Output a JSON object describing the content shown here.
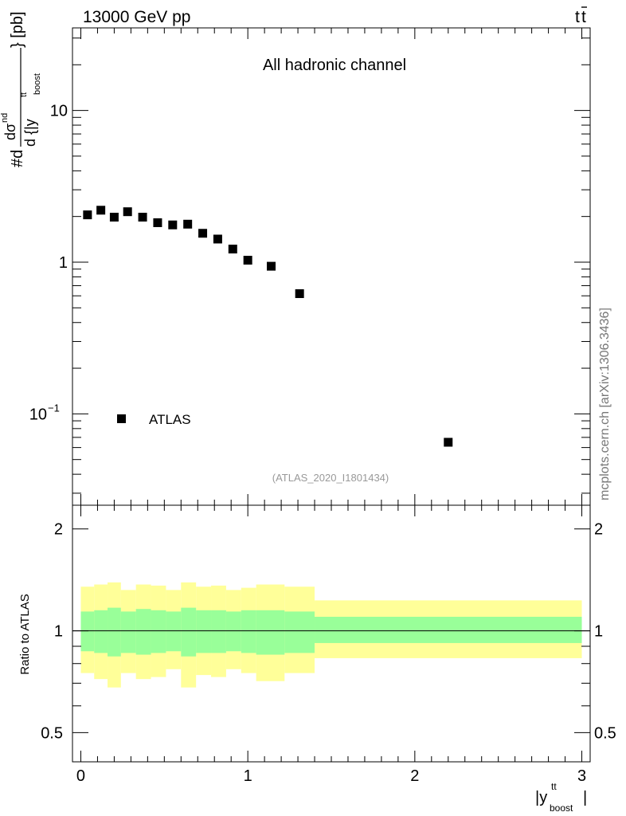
{
  "header": {
    "left": "13000 GeV pp",
    "right_main": "t",
    "right_bar": "t"
  },
  "side_label": "mcplots.cern.ch [arXiv:1306.3436]",
  "chart_data": [
    {
      "type": "scatter",
      "panel": "main",
      "title": "All hadronic channel",
      "analysis_id": "(ATLAS_2020_I1801434)",
      "ylabel": {
        "prefix": "#d",
        "num_main": "dσ",
        "num_sup": "nd",
        "den_main": "d {|y",
        "den_sup": "tt",
        "den_sub": "boost",
        "suffix": "} [pb]"
      },
      "yscale": "log",
      "ylim": [
        0.025,
        35
      ],
      "xlim": [
        -0.05,
        3.05
      ],
      "ytick_labels": [
        {
          "value": 10,
          "text": "10"
        },
        {
          "value": 1,
          "text": "1"
        },
        {
          "value": 0.1,
          "base": "10",
          "exp": "−1"
        }
      ],
      "series": [
        {
          "name": "ATLAS",
          "color": "#000000",
          "marker": "square",
          "points": [
            {
              "x": 0.04,
              "y": 2.05
            },
            {
              "x": 0.12,
              "y": 2.2
            },
            {
              "x": 0.2,
              "y": 1.98
            },
            {
              "x": 0.28,
              "y": 2.15
            },
            {
              "x": 0.37,
              "y": 1.98
            },
            {
              "x": 0.46,
              "y": 1.82
            },
            {
              "x": 0.55,
              "y": 1.76
            },
            {
              "x": 0.64,
              "y": 1.78
            },
            {
              "x": 0.73,
              "y": 1.55
            },
            {
              "x": 0.82,
              "y": 1.42
            },
            {
              "x": 0.91,
              "y": 1.22
            },
            {
              "x": 1.0,
              "y": 1.03
            },
            {
              "x": 1.14,
              "y": 0.94
            },
            {
              "x": 1.31,
              "y": 0.62
            },
            {
              "x": 2.2,
              "y": 0.065
            }
          ]
        }
      ],
      "legend": {
        "entries": [
          "ATLAS"
        ],
        "placement": "lower-left"
      }
    },
    {
      "type": "area",
      "panel": "ratio",
      "ylabel": "Ratio to ATLAS",
      "xlabel": {
        "main": "|y",
        "sup": "tt",
        "sub": "boost",
        "end": "|"
      },
      "xlim": [
        -0.05,
        3.05
      ],
      "ylim": [
        0.41,
        2.35
      ],
      "yscale": "log",
      "xtick_labels": [
        "0",
        "1",
        "2",
        "3"
      ],
      "ytick_labels": [
        "2",
        "1",
        "0.5"
      ],
      "reference_line": 1.0,
      "colors": {
        "inner": "#99ff99",
        "outer": "#ffff99"
      },
      "bins": [
        {
          "x0": 0.0,
          "x1": 0.08,
          "inner": [
            0.87,
            1.14
          ],
          "outer": [
            0.75,
            1.35
          ]
        },
        {
          "x0": 0.08,
          "x1": 0.16,
          "inner": [
            0.86,
            1.15
          ],
          "outer": [
            0.72,
            1.37
          ]
        },
        {
          "x0": 0.16,
          "x1": 0.24,
          "inner": [
            0.84,
            1.17
          ],
          "outer": [
            0.68,
            1.39
          ]
        },
        {
          "x0": 0.24,
          "x1": 0.33,
          "inner": [
            0.86,
            1.14
          ],
          "outer": [
            0.75,
            1.32
          ]
        },
        {
          "x0": 0.33,
          "x1": 0.42,
          "inner": [
            0.85,
            1.16
          ],
          "outer": [
            0.72,
            1.37
          ]
        },
        {
          "x0": 0.42,
          "x1": 0.51,
          "inner": [
            0.86,
            1.15
          ],
          "outer": [
            0.73,
            1.36
          ]
        },
        {
          "x0": 0.51,
          "x1": 0.6,
          "inner": [
            0.87,
            1.14
          ],
          "outer": [
            0.77,
            1.32
          ]
        },
        {
          "x0": 0.6,
          "x1": 0.69,
          "inner": [
            0.84,
            1.17
          ],
          "outer": [
            0.68,
            1.39
          ]
        },
        {
          "x0": 0.69,
          "x1": 0.78,
          "inner": [
            0.86,
            1.15
          ],
          "outer": [
            0.74,
            1.35
          ]
        },
        {
          "x0": 0.78,
          "x1": 0.87,
          "inner": [
            0.86,
            1.15
          ],
          "outer": [
            0.73,
            1.36
          ]
        },
        {
          "x0": 0.87,
          "x1": 0.96,
          "inner": [
            0.87,
            1.14
          ],
          "outer": [
            0.77,
            1.32
          ]
        },
        {
          "x0": 0.96,
          "x1": 1.05,
          "inner": [
            0.86,
            1.15
          ],
          "outer": [
            0.75,
            1.34
          ]
        },
        {
          "x0": 1.05,
          "x1": 1.22,
          "inner": [
            0.85,
            1.15
          ],
          "outer": [
            0.71,
            1.37
          ]
        },
        {
          "x0": 1.22,
          "x1": 1.4,
          "inner": [
            0.86,
            1.14
          ],
          "outer": [
            0.75,
            1.35
          ]
        },
        {
          "x0": 1.4,
          "x1": 3.0,
          "inner": [
            0.92,
            1.1
          ],
          "outer": [
            0.83,
            1.23
          ]
        }
      ]
    }
  ]
}
